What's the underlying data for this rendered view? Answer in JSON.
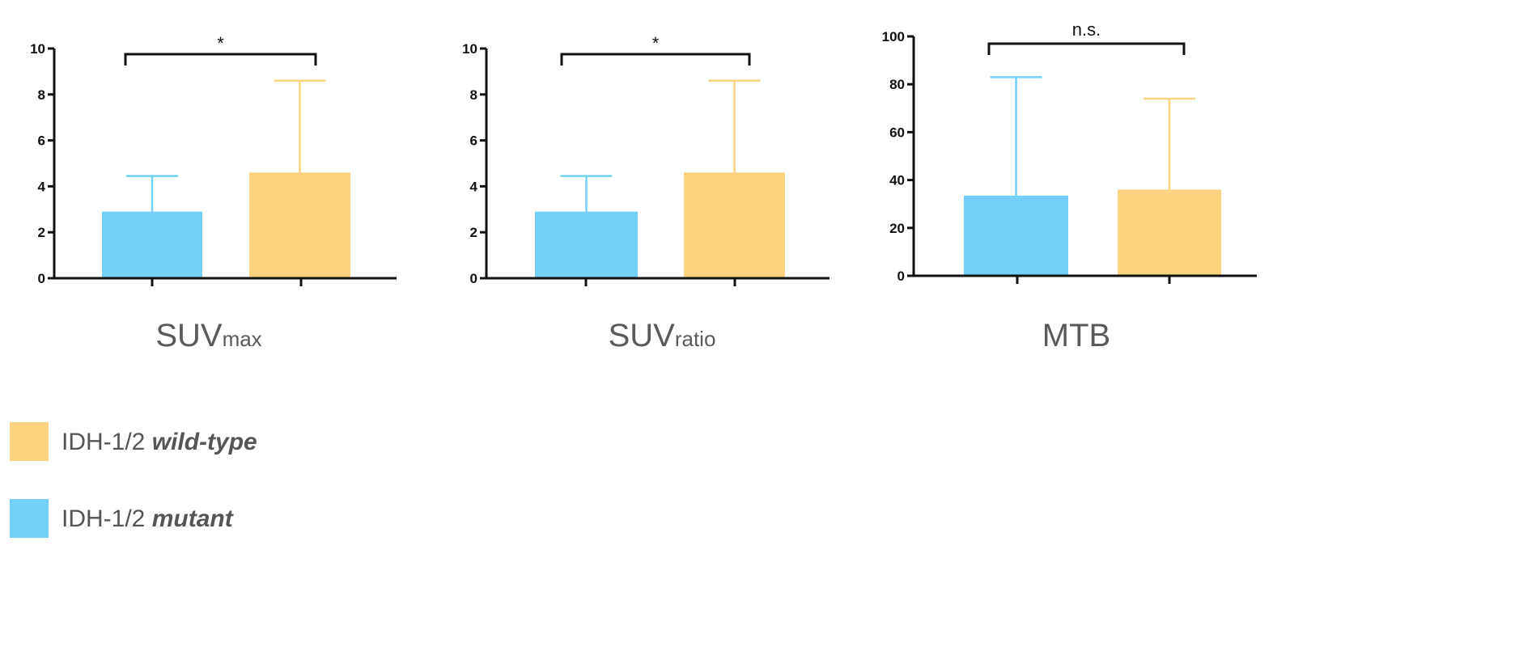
{
  "chart_data": [
    {
      "type": "bar",
      "xlabel_main": "SUV",
      "xlabel_sub": "max",
      "ylim": [
        0,
        10
      ],
      "yticks": [
        "0",
        "2",
        "4",
        "6",
        "8",
        "10"
      ],
      "series": [
        {
          "legend_ref": 1,
          "value": 2.9,
          "error_upper": 4.45,
          "color": "#72d0fb"
        },
        {
          "legend_ref": 0,
          "value": 4.6,
          "error_upper": 8.6,
          "color": "#fdd37f"
        }
      ],
      "significance": "*"
    },
    {
      "type": "bar",
      "xlabel_main": "SUV",
      "xlabel_sub": "ratio",
      "ylim": [
        0,
        10
      ],
      "yticks": [
        "0",
        "2",
        "4",
        "6",
        "8",
        "10"
      ],
      "series": [
        {
          "legend_ref": 1,
          "value": 2.9,
          "error_upper": 4.45,
          "color": "#72d0fb"
        },
        {
          "legend_ref": 0,
          "value": 4.6,
          "error_upper": 8.6,
          "color": "#fdd37f"
        }
      ],
      "significance": "*"
    },
    {
      "type": "bar",
      "xlabel_main": "MTB",
      "xlabel_sub": "",
      "ylim": [
        0,
        100
      ],
      "yticks": [
        "0",
        "20",
        "40",
        "60",
        "80",
        "100"
      ],
      "series": [
        {
          "legend_ref": 1,
          "value": 33.5,
          "error_upper": 83,
          "color": "#72d0fb"
        },
        {
          "legend_ref": 0,
          "value": 36,
          "error_upper": 74,
          "color": "#fdd37f"
        }
      ],
      "significance": "n.s."
    }
  ],
  "legend": [
    {
      "prefix": "IDH-1/2 ",
      "emphasis": "wild-type",
      "color": "#fdd37f"
    },
    {
      "prefix": "IDH-1/2 ",
      "emphasis": "mutant",
      "color": "#72d0fb"
    }
  ]
}
